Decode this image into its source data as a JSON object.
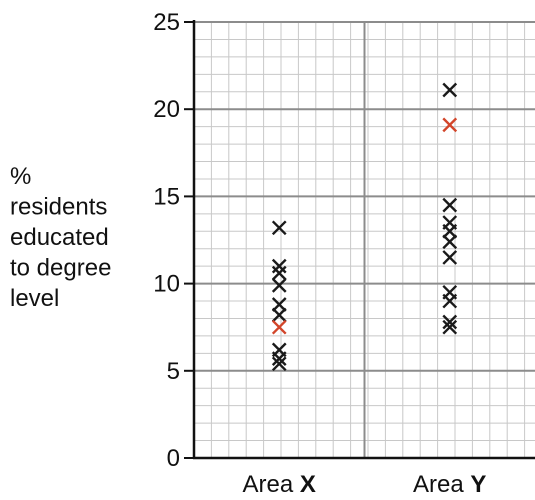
{
  "chart_data": {
    "type": "scatter",
    "ylabel_lines": [
      "%",
      "residents",
      "educated",
      "to degree",
      "level"
    ],
    "ylim": [
      0,
      25
    ],
    "yticks": [
      0,
      5,
      10,
      15,
      20,
      25
    ],
    "categories": [
      {
        "prefix": "Area ",
        "letter": "X"
      },
      {
        "prefix": "Area ",
        "letter": "Y"
      }
    ],
    "series": [
      {
        "category": "Area X",
        "color": "#1a1a1a",
        "values": [
          5.4,
          5.7,
          6.2,
          8.2,
          8.8,
          9.9,
          10.6,
          11.0,
          13.2
        ]
      },
      {
        "category": "Area X",
        "color": "#d2452a",
        "values": [
          7.5
        ]
      },
      {
        "category": "Area Y",
        "color": "#1a1a1a",
        "values": [
          7.5,
          7.8,
          9.0,
          9.5,
          11.5,
          12.4,
          13.0,
          13.5,
          14.5,
          21.1
        ]
      },
      {
        "category": "Area Y",
        "color": "#d2452a",
        "values": [
          19.1
        ]
      }
    ],
    "grid": true,
    "grid_minor_color": "#c8c8c8",
    "grid_major_color": "#8c8c8c"
  }
}
